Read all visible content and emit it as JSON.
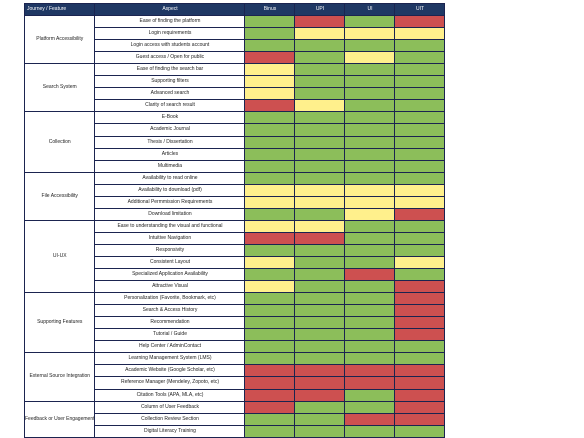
{
  "header": {
    "group": "Journey / Feature",
    "aspect": "Aspect",
    "institutions": [
      "Binus",
      "UPI",
      "UI",
      "UIT"
    ]
  },
  "colors": {
    "green": "#8cbe5a",
    "yellow": "#fff08c",
    "red": "#cd5050",
    "header_bg": "#1f3864"
  },
  "groups": [
    {
      "name": "Platform Accessibility",
      "rows": [
        {
          "aspect": "Ease of finding the platform",
          "scores": [
            "green",
            "red",
            "green",
            "red"
          ]
        },
        {
          "aspect": "Login requirements",
          "scores": [
            "green",
            "yellow",
            "yellow",
            "yellow"
          ]
        },
        {
          "aspect": "Login access with students account",
          "scores": [
            "green",
            "green",
            "green",
            "green"
          ]
        },
        {
          "aspect": "Guest access / Open for public",
          "scores": [
            "red",
            "green",
            "yellow",
            "green"
          ]
        }
      ]
    },
    {
      "name": "Search System",
      "rows": [
        {
          "aspect": "Ease of finding the search bar",
          "scores": [
            "yellow",
            "green",
            "green",
            "green"
          ]
        },
        {
          "aspect": "Supporting filters",
          "scores": [
            "yellow",
            "green",
            "green",
            "green"
          ]
        },
        {
          "aspect": "Advanced search",
          "scores": [
            "yellow",
            "green",
            "green",
            "green"
          ]
        },
        {
          "aspect": "Clarity of search result",
          "scores": [
            "red",
            "yellow",
            "green",
            "green"
          ]
        }
      ]
    },
    {
      "name": "Collection",
      "rows": [
        {
          "aspect": "E-Book",
          "scores": [
            "green",
            "green",
            "green",
            "green"
          ]
        },
        {
          "aspect": "Academic Journal",
          "scores": [
            "green",
            "green",
            "green",
            "green"
          ]
        },
        {
          "aspect": "Thesis / Dissertation",
          "scores": [
            "green",
            "green",
            "green",
            "green"
          ]
        },
        {
          "aspect": "Articles",
          "scores": [
            "green",
            "green",
            "green",
            "green"
          ]
        },
        {
          "aspect": "Multimedia",
          "scores": [
            "green",
            "green",
            "green",
            "green"
          ]
        }
      ]
    },
    {
      "name": "File Accessibility",
      "rows": [
        {
          "aspect": "Availability to read online",
          "scores": [
            "green",
            "green",
            "green",
            "green"
          ]
        },
        {
          "aspect": "Availability to download (pdf)",
          "scores": [
            "yellow",
            "yellow",
            "yellow",
            "yellow"
          ]
        },
        {
          "aspect": "Additional Permmission Requirements",
          "scores": [
            "yellow",
            "yellow",
            "yellow",
            "yellow"
          ]
        },
        {
          "aspect": "Download limitation",
          "scores": [
            "green",
            "green",
            "yellow",
            "red"
          ]
        }
      ]
    },
    {
      "name": "UI-UX",
      "rows": [
        {
          "aspect": "Ease to understanding the visual and functional",
          "scores": [
            "yellow",
            "yellow",
            "green",
            "green"
          ]
        },
        {
          "aspect": "Intuitive Navigation",
          "scores": [
            "red",
            "red",
            "green",
            "green"
          ]
        },
        {
          "aspect": "Responsivity",
          "scores": [
            "green",
            "green",
            "green",
            "green"
          ]
        },
        {
          "aspect": "Consistent Layout",
          "scores": [
            "yellow",
            "green",
            "green",
            "yellow"
          ]
        },
        {
          "aspect": "Specialized Application Availability",
          "scores": [
            "green",
            "green",
            "red",
            "green"
          ]
        },
        {
          "aspect": "Attractive Visual",
          "scores": [
            "yellow",
            "green",
            "green",
            "red"
          ]
        }
      ]
    },
    {
      "name": "Supporting Features",
      "rows": [
        {
          "aspect": "Personalization (Favorite, Bookmark, etc)",
          "scores": [
            "green",
            "green",
            "green",
            "red"
          ]
        },
        {
          "aspect": "Search & Access History",
          "scores": [
            "green",
            "green",
            "green",
            "red"
          ]
        },
        {
          "aspect": "Recommendation",
          "scores": [
            "green",
            "green",
            "green",
            "red"
          ]
        },
        {
          "aspect": "Tutorial / Guide",
          "scores": [
            "green",
            "green",
            "green",
            "red"
          ]
        },
        {
          "aspect": "Help Center / AdminContact",
          "scores": [
            "green",
            "green",
            "green",
            "green"
          ]
        }
      ]
    },
    {
      "name": "External Source Integration",
      "rows": [
        {
          "aspect": "Learning Management System (LMS)",
          "scores": [
            "green",
            "green",
            "green",
            "green"
          ]
        },
        {
          "aspect": "Academic Website (Google Scholar, etc)",
          "scores": [
            "red",
            "red",
            "red",
            "red"
          ]
        },
        {
          "aspect": "Reference Manager (Mendeley, Zopoto, etc)",
          "scores": [
            "red",
            "red",
            "red",
            "red"
          ]
        },
        {
          "aspect": "Citation Tools (APA, MLA, etc)",
          "scores": [
            "red",
            "red",
            "green",
            "red"
          ]
        }
      ]
    },
    {
      "name": "Feedback or User Engagement",
      "rows": [
        {
          "aspect": "Column of User Feedback",
          "scores": [
            "red",
            "green",
            "green",
            "red"
          ]
        },
        {
          "aspect": "Collection Review Section",
          "scores": [
            "green",
            "green",
            "red",
            "red"
          ]
        },
        {
          "aspect": "Digital Literacy Training",
          "scores": [
            "green",
            "green",
            "green",
            "green"
          ]
        }
      ]
    }
  ]
}
